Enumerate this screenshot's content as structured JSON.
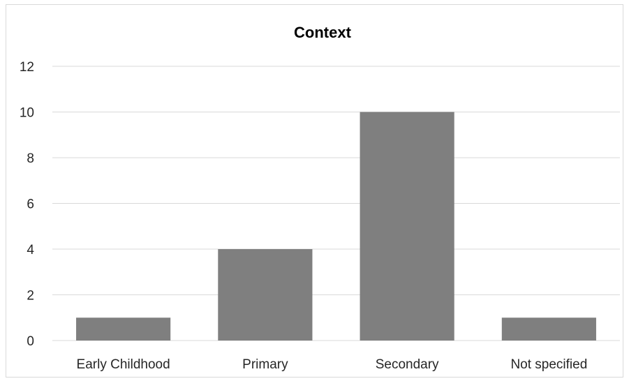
{
  "chart_data": {
    "type": "bar",
    "title": "Context",
    "categories": [
      "Early Childhood",
      "Primary",
      "Secondary",
      "Not specified"
    ],
    "values": [
      1,
      4,
      10,
      1
    ],
    "xlabel": "",
    "ylabel": "",
    "ylim": [
      0,
      12
    ],
    "yticks": [
      0,
      2,
      4,
      6,
      8,
      10,
      12
    ],
    "grid": true,
    "legend": "none",
    "bar_color": "#7f7f7f",
    "grid_color": "#d9d9d9",
    "text_color": "#262626"
  }
}
